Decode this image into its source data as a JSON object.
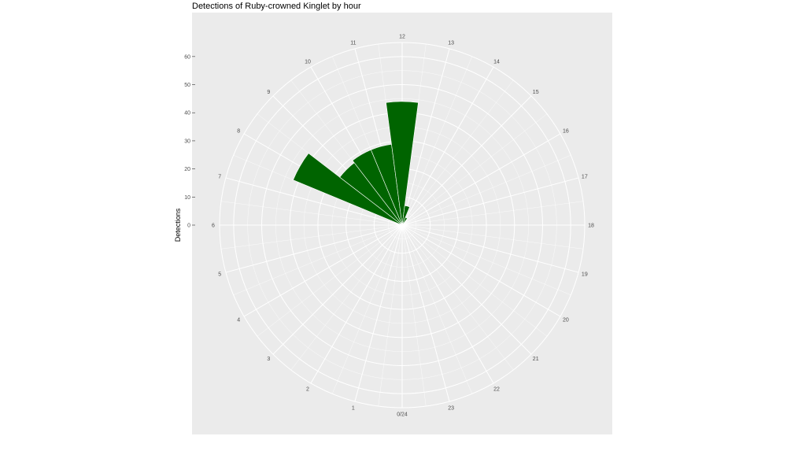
{
  "chart_data": {
    "type": "bar",
    "coord": "polar",
    "title": "Detections of Ruby-crowned Kinglet by hour",
    "xlabel": "",
    "ylabel": "Detections",
    "ylim": [
      0,
      65
    ],
    "yticks": [
      0,
      10,
      20,
      30,
      40,
      50,
      60
    ],
    "hour_labels": [
      "0/24",
      "1",
      "2",
      "3",
      "4",
      "5",
      "6",
      "7",
      "8",
      "9",
      "10",
      "11",
      "12",
      "13",
      "14",
      "15",
      "16",
      "17",
      "18",
      "19",
      "20",
      "21",
      "22",
      "23"
    ],
    "categories": [
      0,
      1,
      2,
      3,
      4,
      5,
      6,
      7,
      8,
      9,
      10,
      11,
      12,
      13,
      14,
      15,
      16,
      17,
      18,
      19,
      20,
      21,
      22,
      23
    ],
    "values": [
      0,
      0,
      0,
      0,
      0,
      0,
      0,
      0,
      42,
      28,
      29,
      29,
      44,
      7,
      3,
      0,
      0,
      0,
      0,
      0,
      0,
      0,
      0,
      0
    ],
    "bar_color": "#006400",
    "panel_color": "#ebebeb",
    "grid_color": "#ffffff",
    "grid": true
  }
}
